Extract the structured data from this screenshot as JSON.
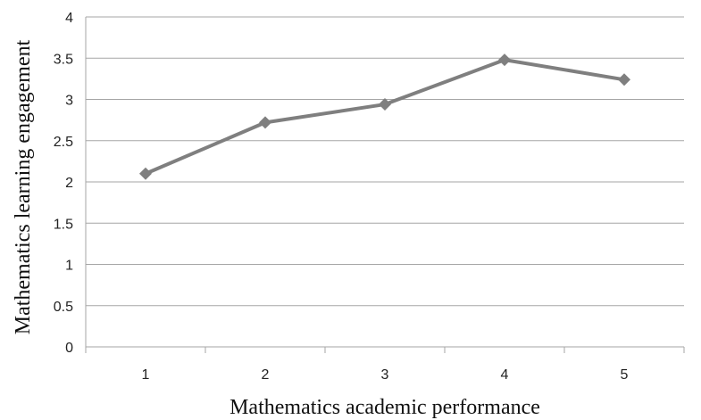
{
  "chart_data": {
    "type": "line",
    "title": "",
    "xlabel": "Mathematics academic performance",
    "ylabel": "Mathematics learning engagement",
    "categories": [
      "1",
      "2",
      "3",
      "4",
      "5"
    ],
    "series": [
      {
        "values": [
          2.1,
          2.72,
          2.94,
          3.48,
          3.24
        ],
        "color": "#7f7f7f",
        "marker": "diamond"
      }
    ],
    "ylim": [
      0,
      4
    ],
    "ytick_labels": [
      "0",
      "0.5",
      "1",
      "1.5",
      "2",
      "2.5",
      "3",
      "3.5",
      "4"
    ],
    "grid": true,
    "legend": "none"
  }
}
